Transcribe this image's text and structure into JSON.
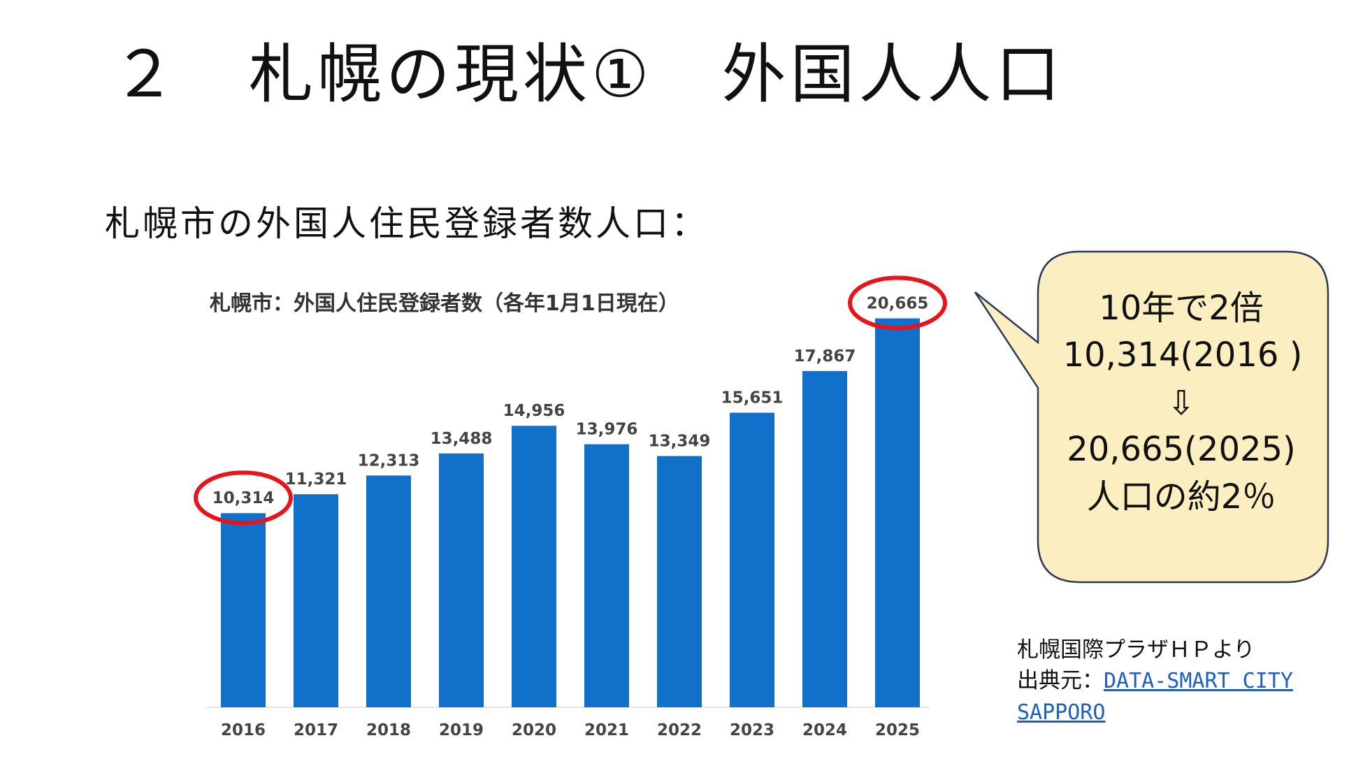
{
  "slide": {
    "title": "２　札幌の現状①　外国人人口",
    "subtitle": "札幌市の外国人住民登録者数人口："
  },
  "chart_data": {
    "type": "bar",
    "title": "札幌市：外国人住民登録者数（各年1月1日現在）",
    "categories": [
      "2016",
      "2017",
      "2018",
      "2019",
      "2020",
      "2021",
      "2022",
      "2023",
      "2024",
      "2025"
    ],
    "values": [
      10314,
      11321,
      12313,
      13488,
      14956,
      13976,
      13349,
      15651,
      17867,
      20665
    ],
    "value_labels": [
      "10,314",
      "11,321",
      "12,313",
      "13,488",
      "14,956",
      "13,976",
      "13,349",
      "15,651",
      "17,867",
      "20,665"
    ],
    "bar_color": "#1170c9",
    "highlight_color": "#e8141b",
    "highlighted_categories": [
      "2016",
      "2025"
    ],
    "xlabel": "",
    "ylabel": "",
    "grid": false,
    "legend": "none"
  },
  "callout": {
    "lines": [
      "10年で2倍",
      "10,314(2016 )",
      "⇩",
      "20,665(2025)",
      "人口の約2％"
    ],
    "background": "#fbeec0",
    "border": "#2b3a55"
  },
  "source": {
    "line1": "札幌国際プラザＨＰより",
    "prefix": "出典元：",
    "link_line1": "DATA-SMART CITY",
    "link_line2": "SAPPORO",
    "link_color": "#1f5fbf"
  }
}
